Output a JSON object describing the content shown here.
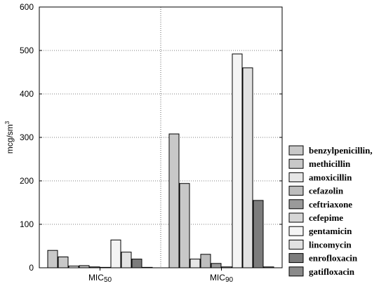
{
  "chart_data": {
    "type": "bar",
    "ylabel": "mcg/sm",
    "ylabel_sup": "3",
    "ylim": [
      0,
      600
    ],
    "yticks": [
      0,
      100,
      200,
      300,
      400,
      500,
      600
    ],
    "categories": [
      {
        "main": "MIC",
        "sub": "50"
      },
      {
        "main": "MIC",
        "sub": "90"
      }
    ],
    "grid": true,
    "legend_position": "right",
    "series": [
      {
        "name": "benzylpenicillin,",
        "color": "#c8c8c8",
        "values": [
          40,
          308
        ]
      },
      {
        "name": "methicillin",
        "color": "#c8c8c8",
        "values": [
          25,
          194
        ]
      },
      {
        "name": "amoxicillin",
        "color": "#e6e6e6",
        "values": [
          4,
          20
        ]
      },
      {
        "name": "cefazolin",
        "color": "#bdbdbd",
        "values": [
          5,
          31
        ]
      },
      {
        "name": "ceftriaxone",
        "color": "#9a9a9a",
        "values": [
          2,
          10
        ]
      },
      {
        "name": "cefepime",
        "color": "#d6d6d6",
        "values": [
          1,
          2
        ]
      },
      {
        "name": "gentamicin",
        "color": "#f4f4f4",
        "values": [
          64,
          492
        ]
      },
      {
        "name": "lincomycin",
        "color": "#e2e2e2",
        "values": [
          36,
          460
        ]
      },
      {
        "name": "enrofloxacin",
        "color": "#7c7c7c",
        "values": [
          20,
          155
        ]
      },
      {
        "name": "gatifloxacin",
        "color": "#8a8a8a",
        "values": [
          1,
          2
        ]
      }
    ]
  }
}
